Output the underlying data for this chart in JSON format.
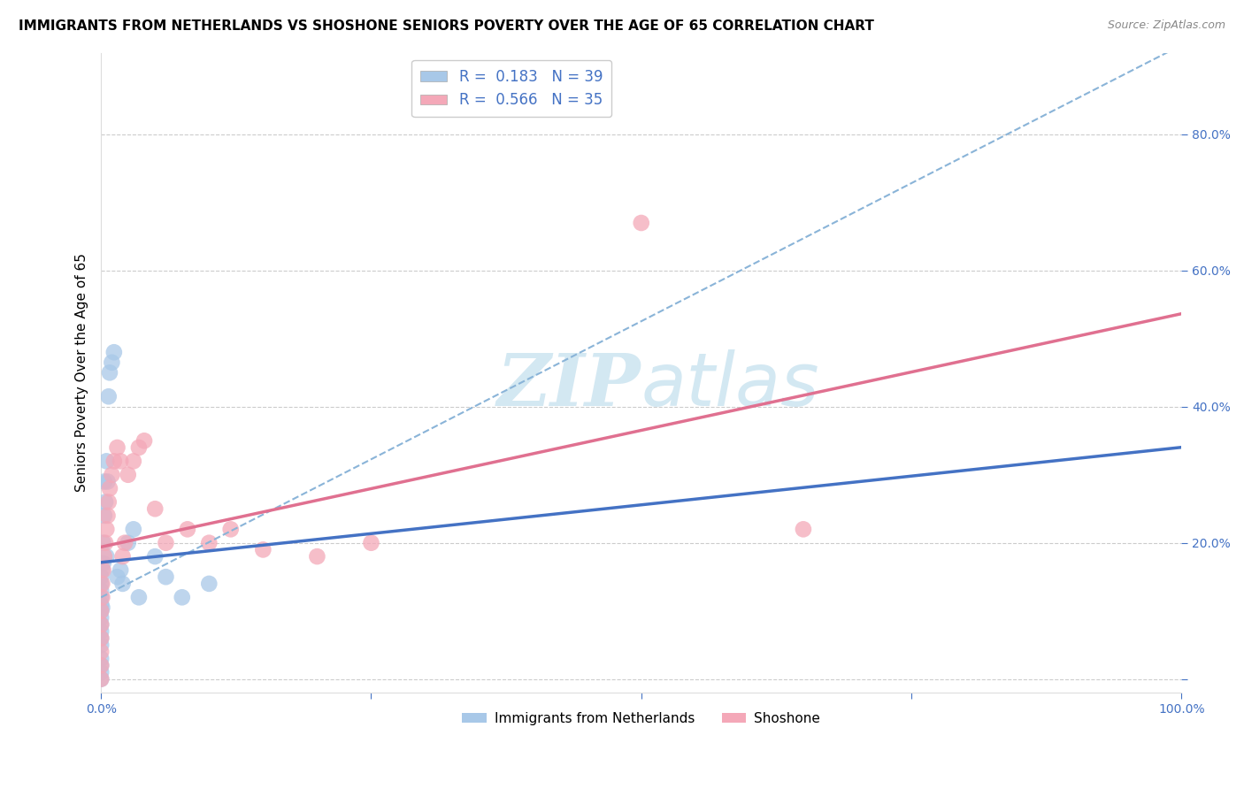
{
  "title": "IMMIGRANTS FROM NETHERLANDS VS SHOSHONE SENIORS POVERTY OVER THE AGE OF 65 CORRELATION CHART",
  "source": "Source: ZipAtlas.com",
  "ylabel": "Seniors Poverty Over the Age of 65",
  "xlim": [
    0.0,
    1.0
  ],
  "ylim": [
    -0.02,
    0.92
  ],
  "xticks": [
    0.0,
    0.25,
    0.5,
    0.75,
    1.0
  ],
  "xticklabels": [
    "0.0%",
    "",
    "",
    "",
    "100.0%"
  ],
  "yticks": [
    0.0,
    0.2,
    0.4,
    0.6,
    0.8
  ],
  "yticklabels": [
    "",
    "20.0%",
    "40.0%",
    "60.0%",
    "80.0%"
  ],
  "r_netherlands": 0.183,
  "n_netherlands": 39,
  "r_shoshone": 0.566,
  "n_shoshone": 35,
  "netherlands_color": "#a8c8e8",
  "shoshone_color": "#f4a8b8",
  "netherlands_line_color": "#4472c4",
  "shoshone_line_color": "#e07090",
  "dashed_line_color": "#8ab4d8",
  "watermark_color": "#cce4f0",
  "legend_label_1": "Immigrants from Netherlands",
  "legend_label_2": "Shoshone",
  "nl_x": [
    0.0,
    0.0,
    0.0,
    0.0,
    0.0,
    0.0,
    0.0,
    0.0,
    0.0,
    0.0,
    0.0,
    0.0,
    0.0,
    0.0,
    0.0,
    0.001,
    0.001,
    0.002,
    0.002,
    0.003,
    0.003,
    0.004,
    0.005,
    0.005,
    0.006,
    0.007,
    0.008,
    0.01,
    0.012,
    0.015,
    0.018,
    0.02,
    0.025,
    0.03,
    0.035,
    0.05,
    0.06,
    0.075,
    0.1
  ],
  "nl_y": [
    0.0,
    0.01,
    0.02,
    0.03,
    0.05,
    0.06,
    0.07,
    0.08,
    0.09,
    0.1,
    0.11,
    0.12,
    0.13,
    0.14,
    0.15,
    0.16,
    0.105,
    0.17,
    0.2,
    0.24,
    0.29,
    0.26,
    0.18,
    0.32,
    0.29,
    0.415,
    0.45,
    0.465,
    0.48,
    0.15,
    0.16,
    0.14,
    0.2,
    0.22,
    0.12,
    0.18,
    0.15,
    0.12,
    0.14
  ],
  "sh_x": [
    0.0,
    0.0,
    0.0,
    0.0,
    0.0,
    0.0,
    0.001,
    0.001,
    0.002,
    0.003,
    0.004,
    0.005,
    0.006,
    0.007,
    0.008,
    0.01,
    0.012,
    0.015,
    0.018,
    0.02,
    0.022,
    0.025,
    0.03,
    0.035,
    0.04,
    0.05,
    0.06,
    0.08,
    0.1,
    0.12,
    0.15,
    0.2,
    0.25,
    0.5,
    0.65
  ],
  "sh_y": [
    0.0,
    0.02,
    0.04,
    0.06,
    0.08,
    0.1,
    0.12,
    0.14,
    0.16,
    0.18,
    0.2,
    0.22,
    0.24,
    0.26,
    0.28,
    0.3,
    0.32,
    0.34,
    0.32,
    0.18,
    0.2,
    0.3,
    0.32,
    0.34,
    0.35,
    0.25,
    0.2,
    0.22,
    0.2,
    0.22,
    0.19,
    0.18,
    0.2,
    0.67,
    0.22
  ]
}
